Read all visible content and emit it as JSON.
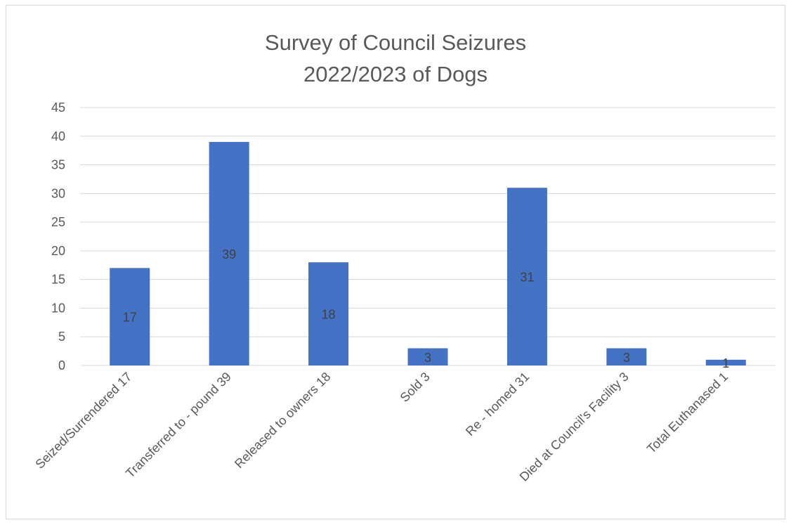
{
  "chart_data": {
    "type": "bar",
    "title": [
      "Survey of Council Seizures",
      "2022/2023 of Dogs"
    ],
    "categories": [
      "Seized/Surrendered 17",
      "Transferred to - pound 39",
      "Released to owners 18",
      "Sold 3",
      "Re - homed 31",
      "Died at Council's Facility 3",
      "Total Euthanased 1"
    ],
    "values": [
      17,
      39,
      18,
      3,
      31,
      3,
      1
    ],
    "data_labels": [
      "17",
      "39",
      "18",
      "3",
      "31",
      "3",
      "1"
    ],
    "ylim": [
      0,
      45
    ],
    "yticks": [
      0,
      5,
      10,
      15,
      20,
      25,
      30,
      35,
      40,
      45
    ],
    "grid": true,
    "legend": "none",
    "bar_color": "#4472c4"
  }
}
